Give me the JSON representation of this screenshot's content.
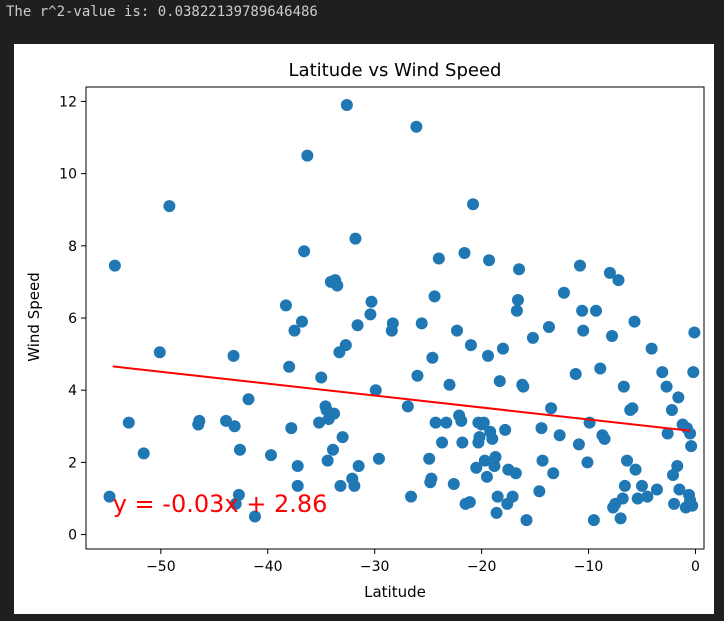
{
  "output": {
    "r2_text": "The r^2-value is: 0.03822139789646486"
  },
  "chart_data": {
    "type": "scatter",
    "title": "Latitude vs Wind Speed",
    "xlabel": "Latitude",
    "ylabel": "Wind Speed",
    "xlim": [
      -57,
      0.8
    ],
    "ylim": [
      -0.4,
      12.4
    ],
    "xticks": [
      -50,
      -40,
      -30,
      -20,
      -10,
      0
    ],
    "xtick_labels": [
      "−50",
      "−40",
      "−30",
      "−20",
      "−10",
      "0"
    ],
    "yticks": [
      0,
      2,
      4,
      6,
      8,
      10,
      12
    ],
    "ytick_labels": [
      "0",
      "2",
      "4",
      "6",
      "8",
      "10",
      "12"
    ],
    "grid": false,
    "point_color": "#1f77b4",
    "regression": {
      "slope": -0.033,
      "intercept": 2.86,
      "x_range": [
        -54.5,
        -0.5
      ],
      "color": "#ff0000",
      "equation": "y = -0.03x + 2.86",
      "annotation_at": [
        -54.5,
        0.85
      ]
    },
    "points": [
      [
        -54.8,
        1.05
      ],
      [
        -54.3,
        7.45
      ],
      [
        -53,
        3.1
      ],
      [
        -51.6,
        2.25
      ],
      [
        -50.1,
        5.05
      ],
      [
        -49.2,
        9.1
      ],
      [
        -46.5,
        3.05
      ],
      [
        -46.4,
        3.15
      ],
      [
        -43.9,
        3.15
      ],
      [
        -43.2,
        4.95
      ],
      [
        -43.1,
        3.0
      ],
      [
        -43,
        0.85
      ],
      [
        -42.7,
        1.1
      ],
      [
        -42.6,
        2.35
      ],
      [
        -41.8,
        3.75
      ],
      [
        -41.2,
        0.5
      ],
      [
        -39.7,
        2.2
      ],
      [
        -38.3,
        6.35
      ],
      [
        -38,
        4.65
      ],
      [
        -37.8,
        2.95
      ],
      [
        -37.5,
        5.65
      ],
      [
        -37.2,
        1.9
      ],
      [
        -37.2,
        1.35
      ],
      [
        -36.8,
        5.9
      ],
      [
        -36.6,
        7.85
      ],
      [
        -36.3,
        10.5
      ],
      [
        -35.2,
        3.1
      ],
      [
        -35,
        4.35
      ],
      [
        -34.6,
        3.55
      ],
      [
        -34.5,
        3.45
      ],
      [
        -34.4,
        2.05
      ],
      [
        -34.3,
        3.2
      ],
      [
        -34.1,
        7.0
      ],
      [
        -33.9,
        2.35
      ],
      [
        -33.8,
        3.35
      ],
      [
        -33.7,
        7.05
      ],
      [
        -33.5,
        6.9
      ],
      [
        -33.3,
        5.05
      ],
      [
        -33.2,
        1.35
      ],
      [
        -33,
        2.7
      ],
      [
        -32.7,
        5.25
      ],
      [
        -32.6,
        11.9
      ],
      [
        -32.1,
        1.55
      ],
      [
        -31.9,
        1.35
      ],
      [
        -31.8,
        8.2
      ],
      [
        -31.6,
        5.8
      ],
      [
        -31.5,
        1.9
      ],
      [
        -30.4,
        6.1
      ],
      [
        -30.3,
        6.45
      ],
      [
        -29.9,
        4.0
      ],
      [
        -29.6,
        2.1
      ],
      [
        -28.4,
        5.65
      ],
      [
        -28.3,
        5.85
      ],
      [
        -26.9,
        3.55
      ],
      [
        -26.6,
        1.05
      ],
      [
        -26.1,
        11.3
      ],
      [
        -26,
        4.4
      ],
      [
        -25.6,
        5.85
      ],
      [
        -24.9,
        2.1
      ],
      [
        -24.8,
        1.45
      ],
      [
        -24.7,
        1.55
      ],
      [
        -24.6,
        4.9
      ],
      [
        -24.4,
        6.6
      ],
      [
        -24.3,
        3.1
      ],
      [
        -24,
        7.65
      ],
      [
        -23.7,
        2.55
      ],
      [
        -23.3,
        3.1
      ],
      [
        -23,
        4.15
      ],
      [
        -22.6,
        1.4
      ],
      [
        -22.3,
        5.65
      ],
      [
        -22.1,
        3.3
      ],
      [
        -21.9,
        3.15
      ],
      [
        -21.8,
        2.55
      ],
      [
        -21.6,
        7.8
      ],
      [
        -21.5,
        0.85
      ],
      [
        -21.1,
        0.9
      ],
      [
        -21,
        5.25
      ],
      [
        -20.8,
        9.15
      ],
      [
        -20.5,
        1.85
      ],
      [
        -20.3,
        2.55
      ],
      [
        -20.3,
        3.1
      ],
      [
        -20.2,
        2.7
      ],
      [
        -20,
        3.05
      ],
      [
        -19.8,
        3.1
      ],
      [
        -19.7,
        2.05
      ],
      [
        -19.5,
        1.6
      ],
      [
        -19.4,
        4.95
      ],
      [
        -19.3,
        7.6
      ],
      [
        -19.2,
        2.85
      ],
      [
        -19,
        2.65
      ],
      [
        -18.8,
        1.9
      ],
      [
        -18.7,
        2.15
      ],
      [
        -18.6,
        0.6
      ],
      [
        -18.5,
        1.05
      ],
      [
        -18.3,
        4.25
      ],
      [
        -18,
        5.15
      ],
      [
        -17.8,
        2.9
      ],
      [
        -17.6,
        0.85
      ],
      [
        -17.5,
        1.8
      ],
      [
        -17.1,
        1.05
      ],
      [
        -16.8,
        1.7
      ],
      [
        -16.7,
        6.2
      ],
      [
        -16.6,
        6.5
      ],
      [
        -16.5,
        7.35
      ],
      [
        -16.2,
        4.15
      ],
      [
        -16.1,
        4.1
      ],
      [
        -15.8,
        0.4
      ],
      [
        -15.2,
        5.45
      ],
      [
        -14.6,
        1.2
      ],
      [
        -14.4,
        2.95
      ],
      [
        -14.3,
        2.05
      ],
      [
        -13.7,
        5.75
      ],
      [
        -13.5,
        3.5
      ],
      [
        -13.3,
        1.7
      ],
      [
        -12.7,
        2.75
      ],
      [
        -12.3,
        6.7
      ],
      [
        -11.2,
        4.45
      ],
      [
        -10.9,
        2.5
      ],
      [
        -10.8,
        7.45
      ],
      [
        -10.6,
        6.2
      ],
      [
        -10.5,
        5.65
      ],
      [
        -10.1,
        2.0
      ],
      [
        -9.9,
        3.1
      ],
      [
        -9.5,
        0.4
      ],
      [
        -9.3,
        6.2
      ],
      [
        -8.9,
        4.6
      ],
      [
        -8.7,
        2.75
      ],
      [
        -8.5,
        2.65
      ],
      [
        -8,
        7.25
      ],
      [
        -7.8,
        5.5
      ],
      [
        -7.7,
        0.75
      ],
      [
        -7.5,
        0.85
      ],
      [
        -7.2,
        7.05
      ],
      [
        -7,
        0.45
      ],
      [
        -6.8,
        1.0
      ],
      [
        -6.7,
        4.1
      ],
      [
        -6.6,
        1.35
      ],
      [
        -6.4,
        2.05
      ],
      [
        -6.1,
        3.45
      ],
      [
        -5.9,
        3.5
      ],
      [
        -5.7,
        5.9
      ],
      [
        -5.6,
        1.8
      ],
      [
        -5.4,
        1.0
      ],
      [
        -5,
        1.35
      ],
      [
        -4.5,
        1.05
      ],
      [
        -4.1,
        5.15
      ],
      [
        -3.6,
        1.25
      ],
      [
        -3.1,
        4.5
      ],
      [
        -2.7,
        4.1
      ],
      [
        -2.6,
        2.8
      ],
      [
        -2.2,
        3.45
      ],
      [
        -2.1,
        1.65
      ],
      [
        -2,
        0.85
      ],
      [
        -1.7,
        1.9
      ],
      [
        -1.6,
        3.8
      ],
      [
        -1.5,
        1.25
      ],
      [
        -1.2,
        3.05
      ],
      [
        -0.9,
        0.75
      ],
      [
        -0.8,
        2.95
      ],
      [
        -0.6,
        1.1
      ],
      [
        -0.5,
        2.8
      ],
      [
        -0.4,
        2.45
      ],
      [
        -0.3,
        0.8
      ],
      [
        -0.2,
        4.5
      ],
      [
        -0.1,
        5.6
      ],
      [
        -0.5,
        0.95
      ]
    ]
  }
}
